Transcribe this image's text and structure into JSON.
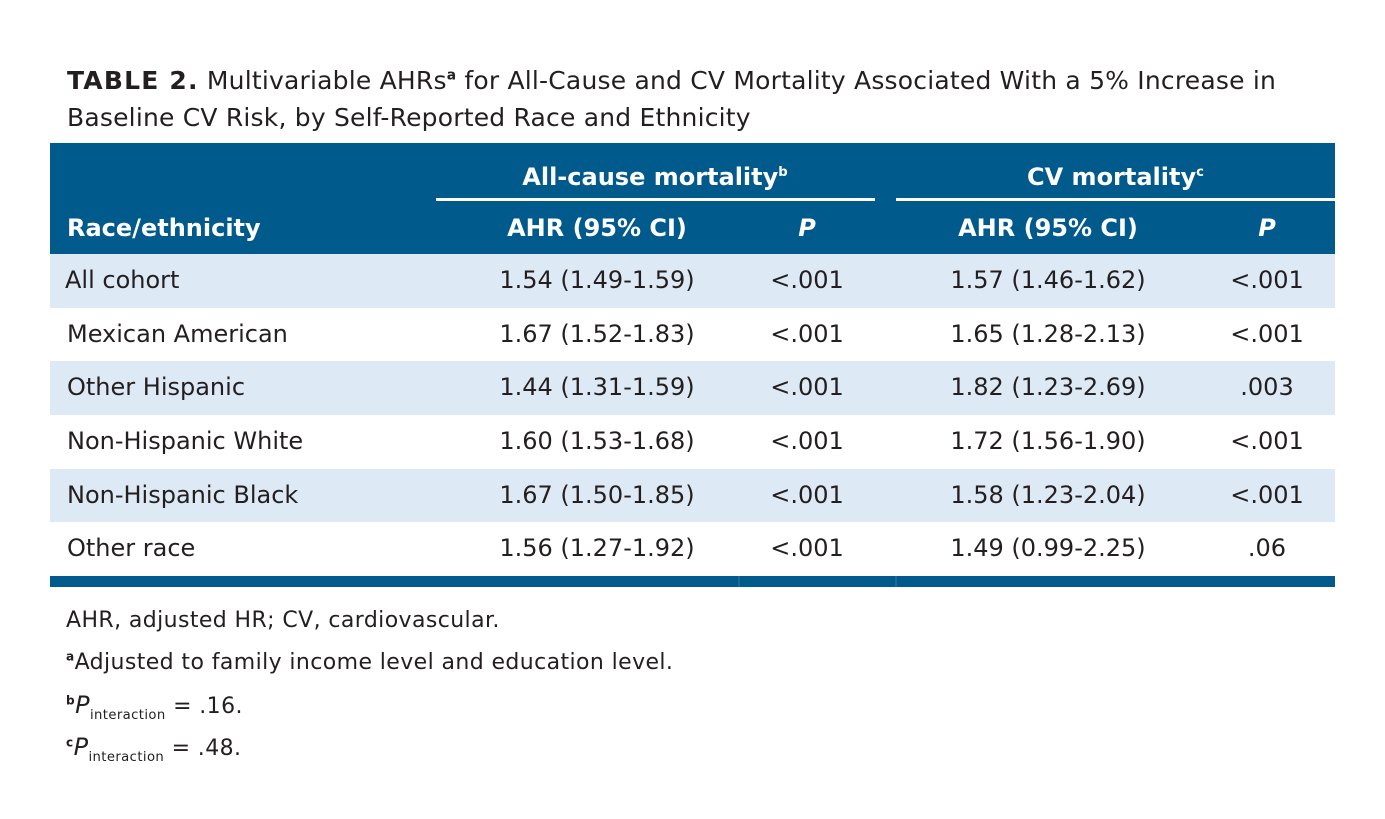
{
  "caption": {
    "label": "TABLE 2.",
    "text_part1": "Multivariable AHRs",
    "text_sup": "a",
    "text_part2": " for All-Cause and CV Mortality Associated With a 5% Increase in Baseline CV Risk, by Self-Reported Race and Ethnicity"
  },
  "table": {
    "groups": [
      {
        "label": "All-cause mortality",
        "sup": "b"
      },
      {
        "label": "CV mortality",
        "sup": "c"
      }
    ],
    "columns": {
      "race": "Race/ethnicity",
      "ahr1": "AHR (95% CI)",
      "p1": "P",
      "ahr2": "AHR (95% CI)",
      "p2": "P"
    },
    "rows": [
      {
        "race": "All cohort",
        "ahr1": "1.54 (1.49-1.59)",
        "p1": "<.001",
        "ahr2": "1.57 (1.46-1.62)",
        "p2": "<.001"
      },
      {
        "race": "Mexican American",
        "ahr1": "1.67 (1.52-1.83)",
        "p1": "<.001",
        "ahr2": "1.65 (1.28-2.13)",
        "p2": "<.001"
      },
      {
        "race": "Other Hispanic",
        "ahr1": "1.44 (1.31-1.59)",
        "p1": "<.001",
        "ahr2": "1.82 (1.23-2.69)",
        "p2": ".003"
      },
      {
        "race": "Non-Hispanic White",
        "ahr1": "1.60 (1.53-1.68)",
        "p1": "<.001",
        "ahr2": "1.72 (1.56-1.90)",
        "p2": "<.001"
      },
      {
        "race": "Non-Hispanic Black",
        "ahr1": "1.67 (1.50-1.85)",
        "p1": "<.001",
        "ahr2": "1.58 (1.23-2.04)",
        "p2": "<.001"
      },
      {
        "race": "Other race",
        "ahr1": "1.56 (1.27-1.92)",
        "p1": "<.001",
        "ahr2": "1.49 (0.99-2.25)",
        "p2": ".06"
      }
    ]
  },
  "footnotes": {
    "abbrev": "AHR, adjusted HR; CV, cardiovascular.",
    "a_mark": "a",
    "a_text": "Adjusted to family income level and education level.",
    "b_mark": "b",
    "b_p": "P",
    "b_sub": "interaction",
    "b_val": " = .16.",
    "c_mark": "c",
    "c_p": "P",
    "c_sub": "interaction",
    "c_val": " = .48."
  },
  "colors": {
    "header_bg": "#005a8c",
    "alt_row_bg": "#dde9f4"
  }
}
